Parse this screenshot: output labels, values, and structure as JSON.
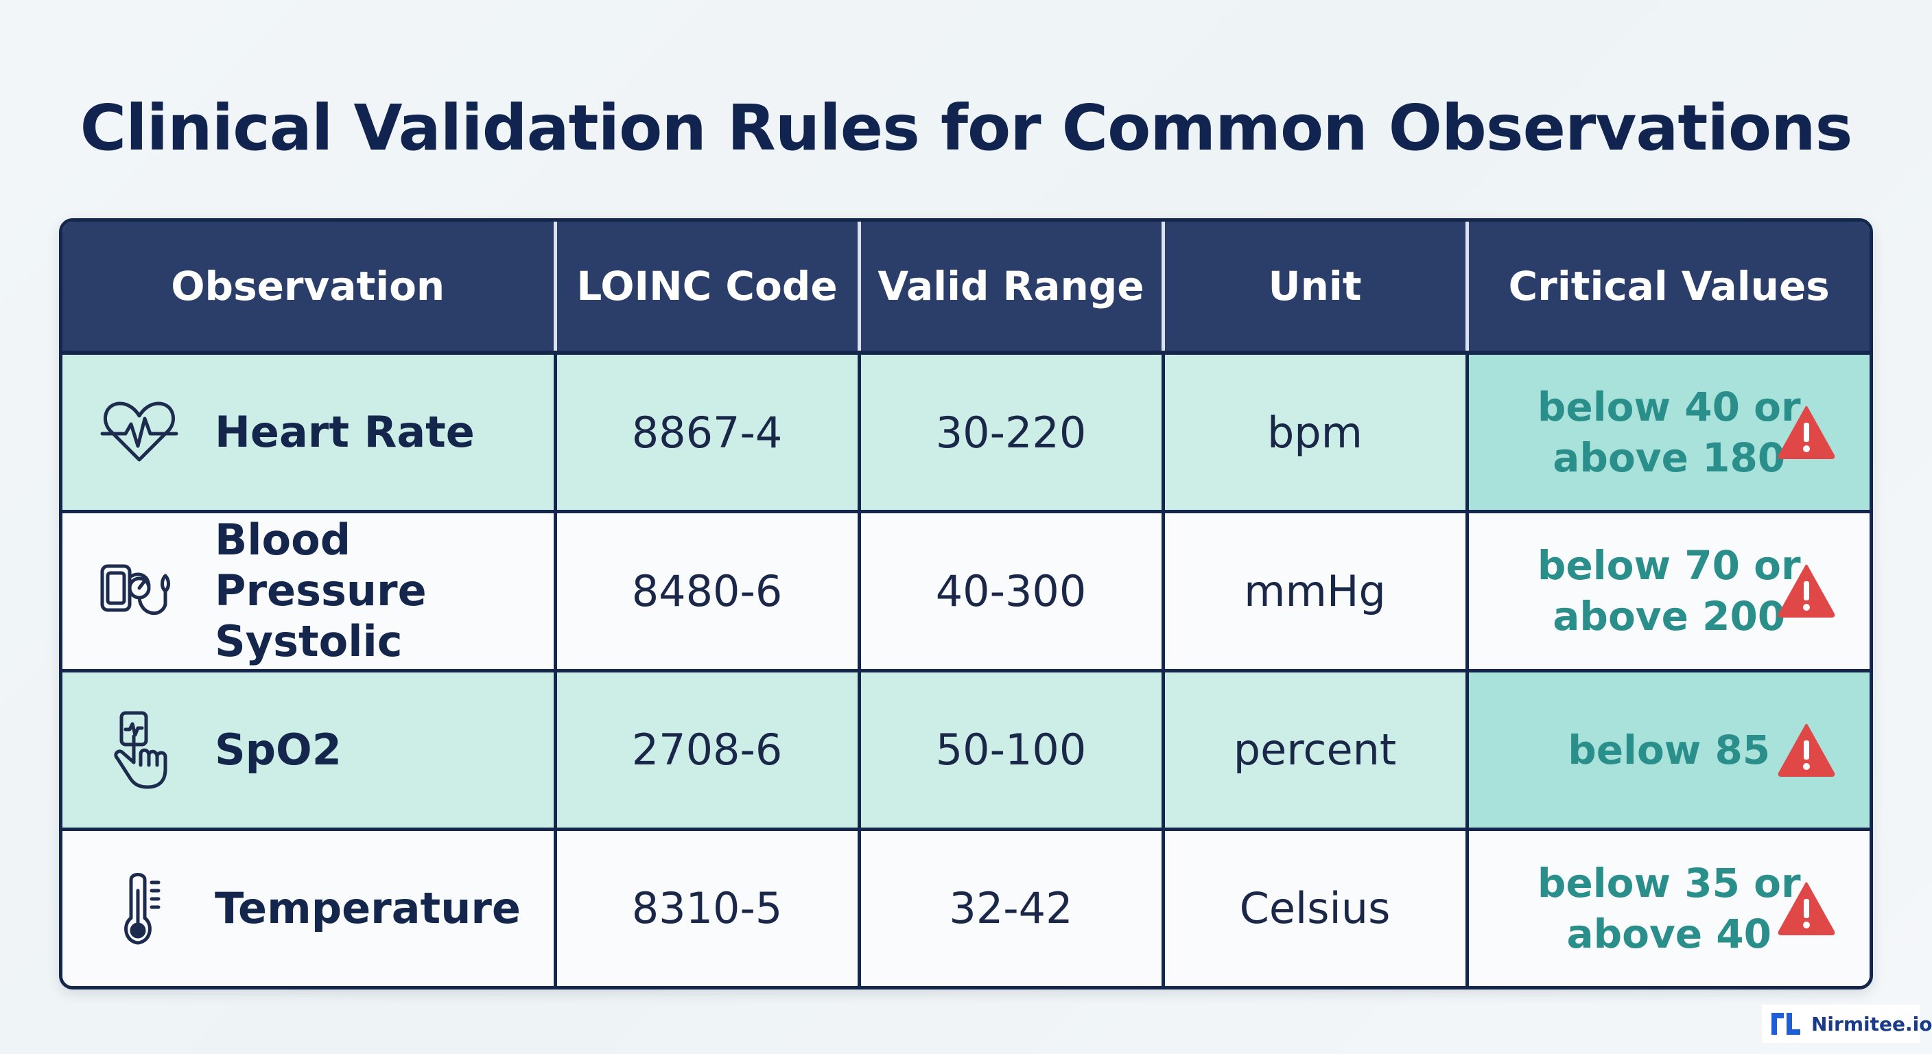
{
  "title": "Clinical Validation Rules for Common Observations",
  "table": {
    "headers": [
      "Observation",
      "LOINC Code",
      "Valid Range",
      "Unit",
      "Critical Values"
    ],
    "rows": [
      {
        "observation": "Heart Rate",
        "icon": "heart-rate-icon",
        "loinc": "8867-4",
        "range": "30-220",
        "unit": "bpm",
        "critical": "below 40 or\nabove 180"
      },
      {
        "observation": "Blood Pressure\nSystolic",
        "icon": "blood-pressure-monitor-icon",
        "loinc": "8480-6",
        "range": "40-300",
        "unit": "mmHg",
        "critical": "below 70 or\nabove 200"
      },
      {
        "observation": "SpO2",
        "icon": "pulse-oximeter-finger-icon",
        "loinc": "2708-6",
        "range": "50-100",
        "unit": "percent",
        "critical": "below 85"
      },
      {
        "observation": "Temperature",
        "icon": "thermometer-icon",
        "loinc": "8310-5",
        "range": "32-42",
        "unit": "Celsius",
        "critical": "below 35 or\nabove 40"
      }
    ]
  },
  "warning_icon": "warning-triangle-icon",
  "brand": {
    "name": "Nirmitee.io",
    "logo_icon": "nirmitee-logo-icon"
  },
  "colors": {
    "header_bg": "#2b3e6a",
    "title": "#112450",
    "row_shade": "#cdeee6",
    "critical_text": "#2a8e8a",
    "warning": "#e04848"
  }
}
